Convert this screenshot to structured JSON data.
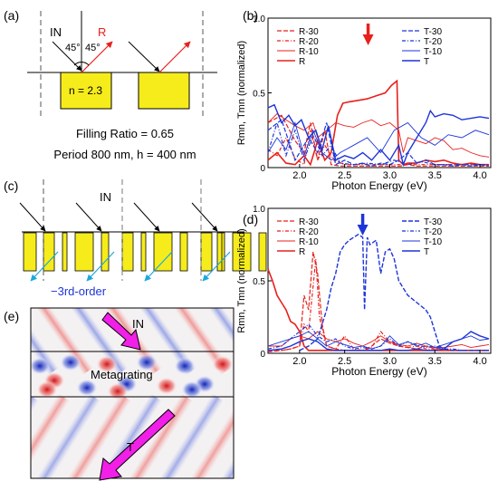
{
  "panel_labels": {
    "a": "(a)",
    "b": "(b)",
    "c": "(c)",
    "d": "(d)",
    "e": "(e)"
  },
  "panel_a": {
    "in_label": "IN",
    "r_label": "R",
    "angle_left": "45°",
    "angle_right": "45°",
    "index_label": "n = 2.3",
    "filling_ratio": "Filling Ratio = 0.65",
    "period": "Period 800 nm, h = 400 nm"
  },
  "panel_c": {
    "in_label": "IN",
    "order_label": "−3rd-order"
  },
  "panel_e": {
    "in_label": "IN",
    "grating_label": "Metagrating",
    "t_label": "T"
  },
  "colors": {
    "red": "#e8201c",
    "blue": "#1d35d8",
    "magenta": "#f21fe8",
    "cyan": "#19a8e0",
    "yellow": "#f6ec1b"
  },
  "chart_data": [
    {
      "panel": "b",
      "type": "line",
      "xlabel": "Photon Energy (eV)",
      "ylabel": "Rmn, Tmn (normalized)",
      "xlim": [
        1.65,
        4.12
      ],
      "ylim": [
        0,
        1.0
      ],
      "xticks": [
        "2.0",
        "2.5",
        "3.0",
        "3.5",
        "4.0"
      ],
      "yticks": [
        "0",
        "0.5",
        "1.0"
      ],
      "arrow_at_x": 2.76,
      "legend_left": [
        "R-30",
        "R-20",
        "R-10",
        "R"
      ],
      "legend_right": [
        "T-30",
        "T-20",
        "T-10",
        "T"
      ],
      "series": [
        {
          "name": "R-30",
          "color": "#e8201c",
          "dash": "5,2",
          "width": 1.2,
          "x": [
            1.65,
            1.8,
            1.95,
            2.05,
            2.12,
            2.2,
            2.28,
            2.35,
            2.45,
            2.55,
            2.65,
            2.75,
            2.85,
            2.95,
            3.05,
            3.12,
            3.2,
            3.3,
            3.4,
            3.5,
            3.6,
            3.7,
            3.8,
            3.9,
            4.0,
            4.1
          ],
          "y": [
            0.3,
            0.35,
            0.18,
            0.1,
            0.3,
            0.05,
            0.25,
            0.02,
            0.01,
            0.01,
            0.01,
            0.01,
            0.01,
            0.01,
            0.01,
            0.01,
            0.02,
            0.01,
            0.01,
            0.01,
            0.01,
            0.01,
            0.01,
            0.01,
            0.01,
            0.01
          ]
        },
        {
          "name": "R-20",
          "color": "#e8201c",
          "dash": "4,2,1,2",
          "width": 1.2,
          "x": [
            1.65,
            1.75,
            1.85,
            1.95,
            2.05,
            2.12,
            2.2,
            2.28,
            2.38,
            2.5,
            2.6,
            2.7,
            2.8,
            2.9,
            3.0,
            3.1,
            3.2,
            3.3,
            3.4,
            3.5,
            3.6,
            3.7,
            3.8,
            3.9,
            4.0,
            4.1
          ],
          "y": [
            0.12,
            0.08,
            0.2,
            0.06,
            0.02,
            0.25,
            0.05,
            0.15,
            0.05,
            0.02,
            0.02,
            0.02,
            0.02,
            0.02,
            0.02,
            0.02,
            0.02,
            0.02,
            0.02,
            0.02,
            0.02,
            0.02,
            0.02,
            0.02,
            0.02,
            0.02
          ]
        },
        {
          "name": "R-10",
          "color": "#e8201c",
          "dash": "",
          "width": 0.9,
          "x": [
            1.65,
            1.75,
            1.85,
            1.95,
            2.05,
            2.15,
            2.2,
            2.3,
            2.4,
            2.5,
            2.6,
            2.7,
            2.8,
            2.9,
            3.0,
            3.1,
            3.15,
            3.2,
            3.3,
            3.4,
            3.5,
            3.6,
            3.7,
            3.8,
            3.9,
            4.0,
            4.1
          ],
          "y": [
            0.3,
            0.36,
            0.32,
            0.28,
            0.25,
            0.3,
            0.2,
            0.25,
            0.3,
            0.28,
            0.27,
            0.3,
            0.32,
            0.28,
            0.3,
            0.25,
            0.1,
            0.2,
            0.18,
            0.16,
            0.2,
            0.18,
            0.12,
            0.13,
            0.1,
            0.08,
            0.07
          ]
        },
        {
          "name": "R",
          "color": "#e8201c",
          "dash": "",
          "width": 1.6,
          "x": [
            1.65,
            1.75,
            1.85,
            1.95,
            2.05,
            2.12,
            2.2,
            2.28,
            2.35,
            2.42,
            2.48,
            2.55,
            2.65,
            2.75,
            2.85,
            2.95,
            3.02,
            3.08,
            3.1,
            3.15,
            3.2,
            3.3,
            3.4,
            3.5,
            3.6,
            3.7,
            3.8,
            3.9,
            4.0,
            4.1
          ],
          "y": [
            0.05,
            0.1,
            0.03,
            0.02,
            0.08,
            0.02,
            0.18,
            0.05,
            0.1,
            0.35,
            0.43,
            0.44,
            0.45,
            0.46,
            0.48,
            0.5,
            0.55,
            0.58,
            0.05,
            0.02,
            0.03,
            0.03,
            0.05,
            0.04,
            0.05,
            0.03,
            0.02,
            0.03,
            0.02,
            0.02
          ]
        },
        {
          "name": "T-30",
          "color": "#1d35d8",
          "dash": "5,2",
          "width": 1.2,
          "x": [
            1.65,
            1.8,
            1.95,
            2.1,
            2.2,
            2.3,
            2.4,
            2.5,
            2.6,
            2.7,
            2.8,
            2.9,
            3.0,
            3.1,
            3.2,
            3.3,
            3.4,
            3.5,
            3.6,
            3.7,
            3.8,
            3.9,
            4.0,
            4.1
          ],
          "y": [
            0.25,
            0.32,
            0.05,
            0.2,
            0.1,
            0.3,
            0.02,
            0.05,
            0.02,
            0.03,
            0.01,
            0.03,
            0.02,
            0.05,
            0.1,
            0.03,
            0.05,
            0.02,
            0.02,
            0.01,
            0.02,
            0.01,
            0.02,
            0.01
          ]
        },
        {
          "name": "T-20",
          "color": "#1d35d8",
          "dash": "4,2,1,2",
          "width": 1.2,
          "x": [
            1.65,
            1.75,
            1.85,
            1.95,
            2.05,
            2.15,
            2.25,
            2.35,
            2.45,
            2.6,
            2.75,
            2.9,
            3.05,
            3.2,
            3.35,
            3.5,
            3.65,
            3.8,
            3.95,
            4.1
          ],
          "y": [
            0.1,
            0.3,
            0.08,
            0.25,
            0.05,
            0.22,
            0.08,
            0.15,
            0.03,
            0.02,
            0.03,
            0.02,
            0.05,
            0.02,
            0.04,
            0.02,
            0.02,
            0.02,
            0.02,
            0.02
          ]
        },
        {
          "name": "T-10",
          "color": "#1d35d8",
          "dash": "",
          "width": 0.9,
          "x": [
            1.65,
            1.75,
            1.85,
            1.95,
            2.05,
            2.15,
            2.25,
            2.35,
            2.45,
            2.6,
            2.75,
            2.9,
            3.05,
            3.2,
            3.35,
            3.5,
            3.65,
            3.8,
            3.95,
            4.1
          ],
          "y": [
            0.1,
            0.2,
            0.12,
            0.3,
            0.08,
            0.25,
            0.1,
            0.05,
            0.1,
            0.15,
            0.2,
            0.1,
            0.25,
            0.3,
            0.2,
            0.15,
            0.22,
            0.2,
            0.25,
            0.22
          ]
        },
        {
          "name": "T",
          "color": "#1d35d8",
          "dash": "",
          "width": 1.4,
          "x": [
            1.65,
            1.72,
            1.8,
            1.88,
            1.95,
            2.02,
            2.1,
            2.18,
            2.25,
            2.32,
            2.4,
            2.5,
            2.6,
            2.7,
            2.8,
            2.9,
            3.0,
            3.1,
            3.15,
            3.2,
            3.3,
            3.4,
            3.45,
            3.5,
            3.6,
            3.7,
            3.8,
            3.9,
            4.0,
            4.1
          ],
          "y": [
            0.4,
            0.42,
            0.3,
            0.35,
            0.28,
            0.32,
            0.2,
            0.25,
            0.12,
            0.28,
            0.05,
            0.08,
            0.06,
            0.1,
            0.05,
            0.12,
            0.05,
            0.15,
            0.02,
            0.1,
            0.2,
            0.3,
            0.38,
            0.34,
            0.36,
            0.35,
            0.32,
            0.33,
            0.34,
            0.33
          ]
        }
      ]
    },
    {
      "panel": "d",
      "type": "line",
      "xlabel": "Photon Energy (eV)",
      "ylabel": "Rmn, Tmn (normalized)",
      "xlim": [
        1.65,
        4.12
      ],
      "ylim": [
        0,
        1.0
      ],
      "xticks": [
        "2.0",
        "2.5",
        "3.0",
        "3.5",
        "4.0"
      ],
      "yticks": [
        "0",
        "0.5",
        "1.0"
      ],
      "arrow_at_x": 2.7,
      "legend_left": [
        "R-30",
        "R-20",
        "R-10",
        "R"
      ],
      "legend_right": [
        "T-30",
        "T-20",
        "T-10",
        "T"
      ],
      "series": [
        {
          "name": "R-30",
          "color": "#e8201c",
          "dash": "5,2",
          "width": 1.2,
          "x": [
            1.65,
            1.8,
            1.9,
            2.0,
            2.05,
            2.1,
            2.15,
            2.2,
            2.25,
            2.3,
            2.4,
            2.5,
            2.6,
            2.7,
            2.8,
            2.9,
            3.0,
            3.1,
            3.2,
            3.3,
            3.4,
            3.5,
            3.6,
            3.7,
            3.8,
            3.9,
            4.0,
            4.1
          ],
          "y": [
            0.01,
            0.02,
            0.03,
            0.05,
            0.4,
            0.3,
            0.7,
            0.55,
            0.2,
            0.05,
            0.03,
            0.02,
            0.02,
            0.02,
            0.05,
            0.1,
            0.07,
            0.05,
            0.04,
            0.03,
            0.05,
            0.04,
            0.03,
            0.02,
            0.02,
            0.02,
            0.02,
            0.02
          ]
        },
        {
          "name": "R-20",
          "color": "#e8201c",
          "dash": "4,2,1,2",
          "width": 1.2,
          "x": [
            1.65,
            1.8,
            1.9,
            2.0,
            2.05,
            2.1,
            2.18,
            2.22,
            2.3,
            2.4,
            2.5,
            2.6,
            2.7,
            2.8,
            2.9,
            3.0,
            3.1,
            3.2,
            3.3,
            3.4,
            3.5,
            3.6,
            3.7,
            3.8,
            3.9,
            4.0,
            4.1
          ],
          "y": [
            0.02,
            0.02,
            0.03,
            0.05,
            0.2,
            0.15,
            0.65,
            0.25,
            0.05,
            0.03,
            0.12,
            0.03,
            0.02,
            0.04,
            0.15,
            0.08,
            0.05,
            0.04,
            0.05,
            0.03,
            0.03,
            0.02,
            0.02,
            0.02,
            0.02,
            0.02,
            0.02
          ]
        },
        {
          "name": "R-10",
          "color": "#e8201c",
          "dash": "",
          "width": 0.9,
          "x": [
            1.65,
            1.8,
            1.9,
            2.0,
            2.1,
            2.2,
            2.3,
            2.4,
            2.5,
            2.6,
            2.7,
            2.8,
            2.9,
            3.0,
            3.1,
            3.2,
            3.3,
            3.4,
            3.5,
            3.6,
            3.7,
            3.8,
            3.9,
            4.0,
            4.1
          ],
          "y": [
            0.05,
            0.05,
            0.1,
            0.12,
            0.1,
            0.15,
            0.1,
            0.08,
            0.1,
            0.07,
            0.05,
            0.08,
            0.12,
            0.08,
            0.06,
            0.05,
            0.07,
            0.05,
            0.03,
            0.04,
            0.05,
            0.06,
            0.04,
            0.05,
            0.06
          ]
        },
        {
          "name": "R",
          "color": "#e8201c",
          "dash": "",
          "width": 1.6,
          "x": [
            1.65,
            1.7,
            1.75,
            1.8,
            1.85,
            1.9,
            1.95,
            2.0,
            2.05,
            2.1,
            2.2,
            2.3,
            2.4,
            2.5,
            2.6,
            2.7,
            2.8,
            2.9,
            3.0,
            3.1,
            3.2,
            3.3,
            3.4,
            3.5,
            3.6,
            3.7,
            3.8,
            3.9,
            4.0,
            4.1
          ],
          "y": [
            0.58,
            0.5,
            0.4,
            0.35,
            0.3,
            0.22,
            0.2,
            0.15,
            0.05,
            0.02,
            0.02,
            0.02,
            0.02,
            0.02,
            0.02,
            0.02,
            0.02,
            0.02,
            0.02,
            0.02,
            0.02,
            0.02,
            0.02,
            0.02,
            0.02,
            0.02,
            0.02,
            0.02,
            0.02,
            0.02
          ]
        },
        {
          "name": "T-30",
          "color": "#1d35d8",
          "dash": "5,2",
          "width": 1.4,
          "x": [
            2.0,
            2.1,
            2.2,
            2.3,
            2.35,
            2.4,
            2.45,
            2.5,
            2.55,
            2.6,
            2.65,
            2.7,
            2.72,
            2.75,
            2.78,
            2.85,
            2.9,
            2.95,
            3.0,
            3.05,
            3.1,
            3.2,
            3.3,
            3.4,
            3.45,
            3.5,
            3.55,
            3.6,
            3.7,
            3.8,
            3.9,
            4.0,
            4.1
          ],
          "y": [
            0.02,
            0.05,
            0.1,
            0.3,
            0.45,
            0.55,
            0.7,
            0.75,
            0.78,
            0.8,
            0.82,
            0.8,
            0.3,
            0.8,
            0.75,
            0.78,
            0.55,
            0.7,
            0.72,
            0.65,
            0.5,
            0.4,
            0.35,
            0.3,
            0.25,
            0.15,
            0.05,
            0.03,
            0.02,
            0.02,
            0.02,
            0.02,
            0.02
          ]
        },
        {
          "name": "T-20",
          "color": "#1d35d8",
          "dash": "4,2,1,2",
          "width": 1.2,
          "x": [
            1.65,
            1.8,
            1.9,
            2.0,
            2.1,
            2.2,
            2.3,
            2.4,
            2.5,
            2.6,
            2.7,
            2.8,
            2.9,
            3.0,
            3.1,
            3.2,
            3.3,
            3.4,
            3.5,
            3.6,
            3.7,
            3.8,
            3.9,
            4.0,
            4.1
          ],
          "y": [
            0.03,
            0.05,
            0.1,
            0.15,
            0.2,
            0.12,
            0.08,
            0.1,
            0.05,
            0.03,
            0.04,
            0.03,
            0.05,
            0.1,
            0.05,
            0.08,
            0.06,
            0.04,
            0.05,
            0.03,
            0.03,
            0.02,
            0.02,
            0.02,
            0.02
          ]
        },
        {
          "name": "T-10",
          "color": "#1d35d8",
          "dash": "",
          "width": 0.9,
          "x": [
            1.65,
            1.8,
            1.9,
            2.0,
            2.1,
            2.2,
            2.3,
            2.4,
            2.5,
            2.6,
            2.7,
            2.8,
            2.9,
            3.0,
            3.1,
            3.2,
            3.3,
            3.4,
            3.5,
            3.6,
            3.7,
            3.8,
            3.9,
            4.0,
            4.1
          ],
          "y": [
            0.05,
            0.08,
            0.1,
            0.12,
            0.15,
            0.1,
            0.05,
            0.08,
            0.06,
            0.04,
            0.05,
            0.03,
            0.05,
            0.12,
            0.06,
            0.08,
            0.05,
            0.07,
            0.04,
            0.06,
            0.08,
            0.1,
            0.12,
            0.09,
            0.1
          ]
        },
        {
          "name": "T",
          "color": "#1d35d8",
          "dash": "",
          "width": 1.4,
          "x": [
            1.65,
            1.8,
            1.9,
            2.0,
            2.1,
            2.2,
            2.3,
            2.4,
            2.5,
            2.6,
            2.7,
            2.8,
            2.9,
            3.0,
            3.1,
            3.2,
            3.3,
            3.4,
            3.5,
            3.6,
            3.7,
            3.8,
            3.9,
            4.0,
            4.1
          ],
          "y": [
            0.02,
            0.03,
            0.05,
            0.08,
            0.1,
            0.08,
            0.03,
            0.02,
            0.02,
            0.02,
            0.02,
            0.02,
            0.02,
            0.03,
            0.02,
            0.02,
            0.03,
            0.02,
            0.02,
            0.03,
            0.08,
            0.1,
            0.15,
            0.12,
            0.1
          ]
        }
      ]
    }
  ]
}
